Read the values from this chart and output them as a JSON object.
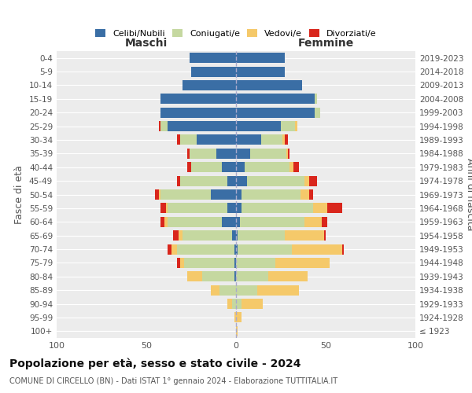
{
  "age_groups": [
    "100+",
    "95-99",
    "90-94",
    "85-89",
    "80-84",
    "75-79",
    "70-74",
    "65-69",
    "60-64",
    "55-59",
    "50-54",
    "45-49",
    "40-44",
    "35-39",
    "30-34",
    "25-29",
    "20-24",
    "15-19",
    "10-14",
    "5-9",
    "0-4"
  ],
  "birth_years": [
    "≤ 1923",
    "1924-1928",
    "1929-1933",
    "1934-1938",
    "1939-1943",
    "1944-1948",
    "1949-1953",
    "1954-1958",
    "1959-1963",
    "1964-1968",
    "1969-1973",
    "1974-1978",
    "1979-1983",
    "1984-1988",
    "1989-1993",
    "1994-1998",
    "1999-2003",
    "2004-2008",
    "2009-2013",
    "2014-2018",
    "2019-2023"
  ],
  "males": {
    "celibi": [
      0,
      0,
      0,
      0,
      1,
      1,
      1,
      2,
      8,
      5,
      14,
      5,
      8,
      11,
      22,
      38,
      42,
      42,
      30,
      25,
      26
    ],
    "coniugati": [
      0,
      0,
      2,
      9,
      18,
      28,
      32,
      28,
      30,
      33,
      28,
      26,
      17,
      15,
      9,
      4,
      0,
      0,
      0,
      0,
      0
    ],
    "vedovi": [
      0,
      1,
      3,
      5,
      8,
      2,
      3,
      2,
      2,
      1,
      1,
      0,
      0,
      0,
      0,
      0,
      0,
      0,
      0,
      0,
      0
    ],
    "divorziati": [
      0,
      0,
      0,
      0,
      0,
      2,
      2,
      3,
      2,
      3,
      2,
      2,
      2,
      1,
      2,
      1,
      0,
      0,
      0,
      0,
      0
    ]
  },
  "females": {
    "nubili": [
      0,
      0,
      0,
      0,
      0,
      0,
      1,
      1,
      2,
      3,
      3,
      6,
      5,
      8,
      14,
      25,
      44,
      44,
      37,
      27,
      27
    ],
    "coniugate": [
      0,
      0,
      3,
      12,
      18,
      22,
      30,
      26,
      36,
      40,
      33,
      32,
      25,
      20,
      12,
      8,
      3,
      1,
      0,
      0,
      0
    ],
    "vedove": [
      1,
      3,
      12,
      23,
      22,
      30,
      28,
      22,
      10,
      8,
      5,
      3,
      2,
      1,
      1,
      1,
      0,
      0,
      0,
      0,
      0
    ],
    "divorziate": [
      0,
      0,
      0,
      0,
      0,
      0,
      1,
      1,
      3,
      8,
      2,
      4,
      3,
      1,
      2,
      0,
      0,
      0,
      0,
      0,
      0
    ]
  },
  "colors": {
    "celibi": "#3a6ea5",
    "coniugati": "#c5d8a0",
    "vedovi": "#f5c96a",
    "divorziati": "#d9261c"
  },
  "xlim": 100,
  "title": "Popolazione per età, sesso e stato civile - 2024",
  "subtitle": "COMUNE DI CIRCELLO (BN) - Dati ISTAT 1° gennaio 2024 - Elaborazione TUTTITALIA.IT",
  "ylabel_left": "Fasce di età",
  "ylabel_right": "Anni di nascita",
  "xlabel_left": "Maschi",
  "xlabel_right": "Femmine",
  "background_color": "#ffffff",
  "plot_bg_color": "#ececec"
}
